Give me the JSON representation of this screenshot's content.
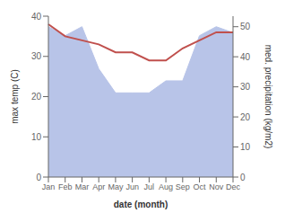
{
  "chart_data": {
    "type": "line",
    "xlabel": "date (month)",
    "ylabel": "max temp (C)",
    "y2label": "med. precipitation (kg/m2)",
    "categories": [
      "Jan",
      "Feb",
      "Mar",
      "Apr",
      "May",
      "Jun",
      "Jul",
      "Aug",
      "Sep",
      "Oct",
      "Nov",
      "Dec"
    ],
    "series": [
      {
        "type": "area",
        "axis": "y2",
        "color": "#b8c4e8",
        "values": [
          50,
          47,
          50,
          36,
          28,
          28,
          28,
          32,
          32,
          47,
          50,
          48
        ]
      },
      {
        "type": "line",
        "axis": "y",
        "color": "#c0504d",
        "values": [
          38,
          35,
          34,
          33,
          31,
          31,
          29,
          29,
          32,
          34,
          36,
          36
        ]
      }
    ],
    "ylim": [
      0,
      40
    ],
    "yticks": [
      0,
      10,
      20,
      30,
      40
    ],
    "y2lim": [
      0,
      53.5
    ],
    "y2ticks": [
      0,
      10,
      20,
      30,
      40,
      50
    ]
  }
}
